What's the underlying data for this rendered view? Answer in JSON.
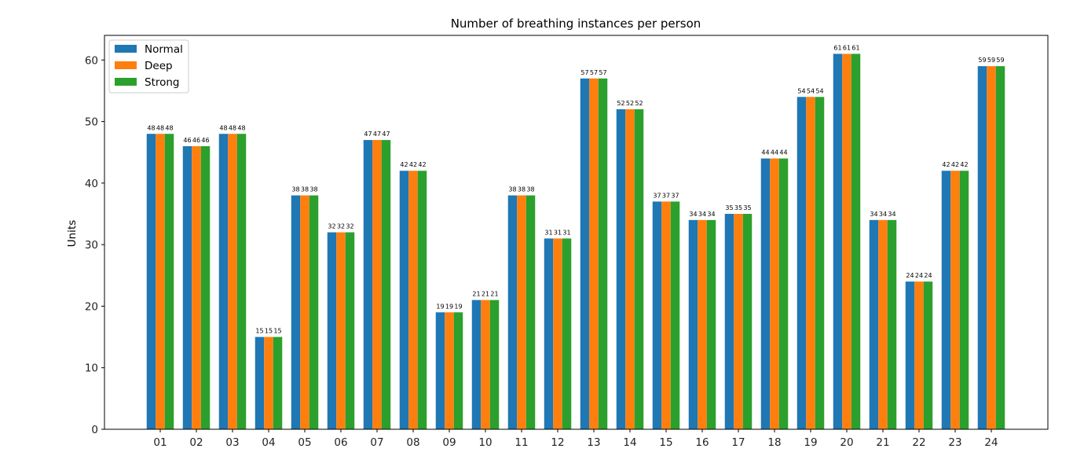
{
  "chart_data": {
    "type": "bar",
    "title": "Number of breathing instances per person",
    "xlabel": "",
    "ylabel": "Units",
    "ylim": [
      0,
      64
    ],
    "yticks": [
      0,
      10,
      20,
      30,
      40,
      50,
      60
    ],
    "grid": false,
    "legend_position": "top-left",
    "categories": [
      "01",
      "02",
      "03",
      "04",
      "05",
      "06",
      "07",
      "08",
      "09",
      "10",
      "11",
      "12",
      "13",
      "14",
      "15",
      "16",
      "17",
      "18",
      "19",
      "20",
      "21",
      "22",
      "23",
      "24"
    ],
    "series": [
      {
        "name": "Normal",
        "color": "#1f77b4",
        "values": [
          48,
          46,
          48,
          15,
          38,
          32,
          47,
          42,
          19,
          21,
          38,
          31,
          57,
          52,
          37,
          34,
          35,
          44,
          54,
          61,
          34,
          24,
          42,
          59
        ]
      },
      {
        "name": "Deep",
        "color": "#ff7f0e",
        "values": [
          48,
          46,
          48,
          15,
          38,
          32,
          47,
          42,
          19,
          21,
          38,
          31,
          57,
          52,
          37,
          34,
          35,
          44,
          54,
          61,
          34,
          24,
          42,
          59
        ]
      },
      {
        "name": "Strong",
        "color": "#2ca02c",
        "values": [
          48,
          46,
          48,
          15,
          38,
          32,
          47,
          42,
          19,
          21,
          38,
          31,
          57,
          52,
          37,
          34,
          35,
          44,
          54,
          61,
          34,
          24,
          42,
          59
        ]
      }
    ]
  }
}
